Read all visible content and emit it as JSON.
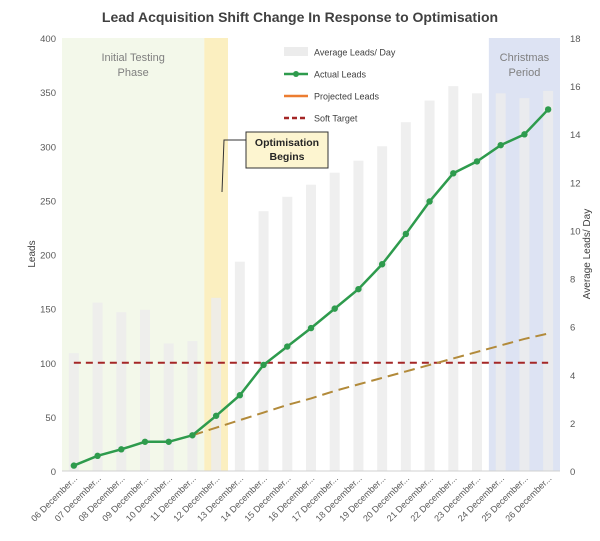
{
  "chart_data": {
    "type": "bar+line",
    "title": "Lead Acquisition Shift Change In Response to Optimisation",
    "ylabel_left": "Leads",
    "ylabel_right": "Average Leads/ Day",
    "ylim_left": [
      0,
      400
    ],
    "ylim_right": [
      0,
      18
    ],
    "left_ticks": [
      0,
      50,
      100,
      150,
      200,
      250,
      300,
      350,
      400
    ],
    "right_ticks": [
      0,
      2,
      4,
      6,
      8,
      10,
      12,
      14,
      16,
      18
    ],
    "categories": [
      "06 December...",
      "07 December...",
      "08 December...",
      "09 December...",
      "10 December...",
      "11 December...",
      "12 December...",
      "13 December...",
      "14 December...",
      "15 December...",
      "16 December...",
      "17 December...",
      "18 December...",
      "19 December...",
      "20 December...",
      "21 December...",
      "22 December...",
      "23 December...",
      "24 December...",
      "25 December...",
      "26 December..."
    ],
    "series": [
      {
        "name": "Average Leads/ Day",
        "kind": "bar",
        "axis": "right",
        "color": "#ececec",
        "values": [
          4.9,
          7.0,
          6.6,
          6.7,
          5.3,
          5.4,
          7.2,
          8.7,
          10.8,
          11.4,
          11.9,
          12.4,
          12.9,
          13.5,
          14.5,
          15.4,
          16.0,
          15.7,
          15.7,
          15.5,
          15.8
        ]
      },
      {
        "name": "Actual Leads",
        "kind": "line",
        "axis": "left",
        "color": "#2e9b4d",
        "values": [
          5,
          14,
          20,
          27,
          27,
          33,
          51,
          70,
          98,
          115,
          132,
          150,
          168,
          191,
          219,
          249,
          275,
          286,
          301,
          311,
          334
        ]
      },
      {
        "name": "Projected Leads",
        "kind": "dashed-line",
        "axis": "left",
        "color": "#b28a3a",
        "values": [
          null,
          null,
          null,
          null,
          null,
          33,
          40,
          47,
          54,
          61,
          67,
          74,
          80,
          86,
          92,
          98,
          104,
          110,
          116,
          122,
          127
        ]
      },
      {
        "name": "Soft Target",
        "kind": "dashed-line",
        "axis": "left",
        "color": "#a42626",
        "values": [
          100,
          100,
          100,
          100,
          100,
          100,
          100,
          100,
          100,
          100,
          100,
          100,
          100,
          100,
          100,
          100,
          100,
          100,
          100,
          100,
          100
        ]
      }
    ],
    "legend": [
      "Average Leads/ Day",
      "Actual Leads",
      "Projected Leads",
      "Soft Target"
    ],
    "regions": [
      {
        "label_lines": [
          "Initial Testing",
          "Phase"
        ],
        "from_index": 0,
        "to_index": 5,
        "color": "#f3f8ea"
      },
      {
        "label_lines": [],
        "from_index": 6,
        "to_index": 6,
        "color": "#fbefc0"
      },
      {
        "label_lines": [
          "Christmas",
          "Period"
        ],
        "from_index": 18,
        "to_index": 20,
        "color": "#dde3f3"
      }
    ],
    "annotation": {
      "lines": [
        "Optimisation",
        "Begins"
      ]
    }
  }
}
